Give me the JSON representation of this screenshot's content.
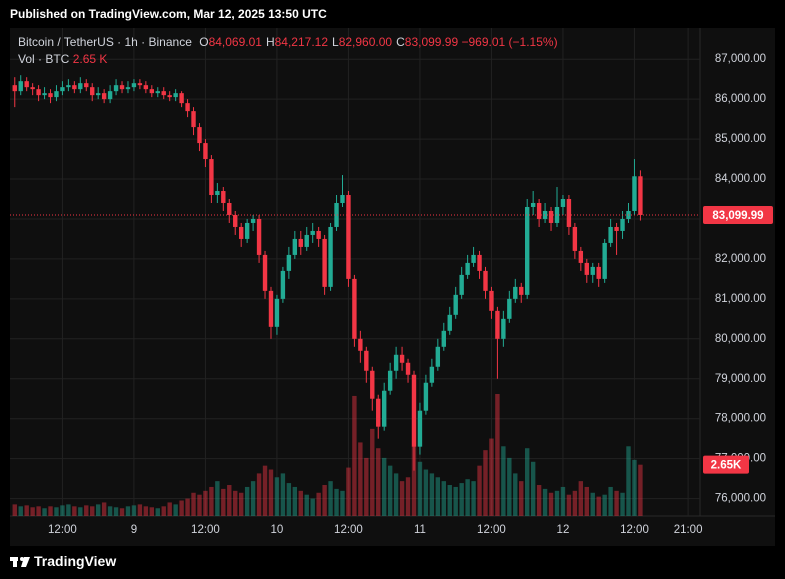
{
  "header": {
    "published": "Published on TradingView.com, Mar 12, 2025 13:50 UTC"
  },
  "chart_data": {
    "type": "candlestick",
    "symbol": "Bitcoin / TetherUS · 1h · Binance",
    "ohlc_keys": [
      "O",
      "H",
      "L",
      "C"
    ],
    "ohlc_labels": [
      "84,069.01",
      "84,217.12",
      "82,960.00",
      "83,099.99"
    ],
    "change_label": "−969.01 (−1.15%)",
    "volume_title": "Vol · BTC",
    "volume_label": "2.65 K",
    "last_price_label": "83,099.99",
    "last_volume_label": "2.65K",
    "open": [
      86350,
      86200,
      86450,
      86300,
      86250,
      86100,
      86150,
      86050,
      86200,
      86300,
      86350,
      86250,
      86400,
      86300,
      86100,
      86150,
      86000,
      86200,
      86350,
      86250,
      86300,
      86400,
      86350,
      86250,
      86150,
      86200,
      86100,
      86050,
      86150,
      85900,
      85700,
      85300,
      84900,
      84500,
      83600,
      83700,
      83400,
      83100,
      82800,
      82500,
      82900,
      83000,
      82100,
      81200,
      80300,
      81000,
      81700,
      82100,
      82500,
      82300,
      82600,
      82700,
      82500,
      81300,
      82800,
      83400,
      83600,
      81500,
      80000,
      79700,
      79200,
      78500,
      77800,
      78700,
      79200,
      79600,
      79400,
      79100,
      77300,
      78200,
      78900,
      79300,
      79800,
      80200,
      80600,
      81100,
      81600,
      81900,
      82100,
      81700,
      81200,
      80700,
      80000,
      80500,
      81000,
      81300,
      81100,
      83300,
      83400,
      83000,
      83200,
      82900,
      83300,
      83500,
      82800,
      82200,
      81900,
      81600,
      81800,
      81500,
      82400,
      82800,
      82700,
      83000,
      83200,
      84069.01
    ],
    "high": [
      86550,
      86600,
      86550,
      86400,
      86350,
      86300,
      86250,
      86350,
      86450,
      86500,
      86450,
      86550,
      86500,
      86400,
      86300,
      86250,
      86350,
      86500,
      86450,
      86450,
      86500,
      86500,
      86450,
      86350,
      86300,
      86300,
      86200,
      86250,
      86200,
      86000,
      85800,
      85400,
      85000,
      84600,
      83900,
      83800,
      83500,
      83200,
      82900,
      83000,
      83100,
      83100,
      82200,
      81300,
      81100,
      81800,
      82300,
      82700,
      82700,
      82800,
      82900,
      82800,
      82600,
      82900,
      83600,
      84100,
      83700,
      81600,
      80200,
      79800,
      79300,
      78600,
      78900,
      79400,
      79800,
      79800,
      79500,
      79200,
      78400,
      79100,
      79500,
      80000,
      80400,
      80800,
      81300,
      81800,
      82100,
      82300,
      82200,
      81800,
      81300,
      80800,
      80700,
      81200,
      81500,
      81400,
      83500,
      83700,
      83500,
      83400,
      83300,
      83800,
      83600,
      83600,
      82900,
      82300,
      82000,
      81900,
      81900,
      82500,
      83000,
      82900,
      83200,
      83400,
      84500,
      84217.12
    ],
    "low": [
      85800,
      86100,
      86200,
      86100,
      85950,
      86000,
      85900,
      85950,
      86100,
      86200,
      86150,
      86150,
      86200,
      85950,
      86000,
      85900,
      85900,
      86100,
      86150,
      86150,
      86200,
      86250,
      86150,
      86050,
      86050,
      86000,
      85950,
      85950,
      85800,
      85550,
      85100,
      84700,
      84300,
      83400,
      83400,
      83200,
      82900,
      82600,
      82300,
      82400,
      82700,
      81900,
      81000,
      80000,
      80100,
      80900,
      81500,
      82000,
      82100,
      82200,
      82400,
      82300,
      81100,
      81200,
      82700,
      83300,
      81300,
      79800,
      79400,
      78900,
      78200,
      77500,
      77700,
      78600,
      79000,
      79200,
      78900,
      76700,
      77100,
      78100,
      78800,
      79200,
      79700,
      80100,
      80500,
      81000,
      81500,
      81800,
      81500,
      81000,
      80500,
      79000,
      79800,
      80400,
      80900,
      80900,
      81000,
      83100,
      82800,
      82900,
      82700,
      82800,
      83100,
      82600,
      82000,
      81700,
      81400,
      81400,
      81300,
      81400,
      82300,
      82100,
      82500,
      82900,
      83100,
      82960
    ],
    "close": [
      86200,
      86450,
      86300,
      86250,
      86100,
      86150,
      86050,
      86200,
      86300,
      86350,
      86250,
      86400,
      86300,
      86100,
      86150,
      86000,
      86200,
      86350,
      86250,
      86300,
      86400,
      86350,
      86250,
      86150,
      86200,
      86100,
      86050,
      86150,
      85900,
      85700,
      85300,
      84900,
      84500,
      83600,
      83700,
      83400,
      83100,
      82800,
      82500,
      82900,
      83000,
      82100,
      81200,
      80300,
      81000,
      81700,
      82100,
      82500,
      82300,
      82600,
      82700,
      82500,
      81300,
      82800,
      83400,
      83600,
      81500,
      80000,
      79700,
      79200,
      78500,
      77800,
      78700,
      79200,
      79600,
      79400,
      79100,
      77300,
      78200,
      78900,
      79300,
      79800,
      80200,
      80600,
      81100,
      81600,
      81900,
      82100,
      81700,
      81200,
      80700,
      80000,
      80500,
      81000,
      81300,
      81100,
      83300,
      83400,
      83000,
      83200,
      82900,
      83300,
      83500,
      82800,
      82200,
      81900,
      81600,
      81800,
      81500,
      82400,
      82800,
      82700,
      83000,
      83200,
      84069.01,
      83099.99
    ],
    "volume": [
      600,
      500,
      550,
      450,
      500,
      400,
      500,
      450,
      550,
      600,
      500,
      450,
      550,
      500,
      600,
      700,
      500,
      450,
      400,
      500,
      550,
      600,
      500,
      450,
      400,
      500,
      700,
      600,
      800,
      900,
      1200,
      1100,
      1300,
      1500,
      1800,
      1400,
      1600,
      1300,
      1200,
      1500,
      1800,
      2200,
      2600,
      2400,
      2000,
      2200,
      1700,
      1500,
      1300,
      1100,
      900,
      1200,
      1600,
      1800,
      1400,
      1300,
      2500,
      6200,
      3800,
      3000,
      4500,
      3500,
      3000,
      2600,
      2200,
      1800,
      2000,
      3600,
      2800,
      2400,
      2200,
      2000,
      1800,
      1600,
      1500,
      1700,
      1900,
      1800,
      2600,
      3400,
      4000,
      6300,
      3600,
      3000,
      2200,
      1800,
      3500,
      2800,
      1600,
      1400,
      1200,
      1300,
      1500,
      1100,
      1300,
      1800,
      1500,
      1200,
      1000,
      1100,
      1500,
      1300,
      1200,
      3600,
      2900,
      2650
    ],
    "up_color": "#22ab94",
    "down_color": "#f23645",
    "xlim": [
      -0.8,
      115
    ],
    "xticks": [
      {
        "value": 8,
        "label": "12:00"
      },
      {
        "value": 20,
        "label": "9"
      },
      {
        "value": 32,
        "label": "12:00"
      },
      {
        "value": 44,
        "label": "10"
      },
      {
        "value": 56,
        "label": "12:00"
      },
      {
        "value": 68,
        "label": "11"
      },
      {
        "value": 80,
        "label": "12:00"
      },
      {
        "value": 92,
        "label": "12"
      },
      {
        "value": 104,
        "label": "12:00"
      },
      {
        "value": 113,
        "label": "21:00"
      }
    ],
    "ylim": [
      75564,
      87781
    ],
    "yticks": [
      {
        "value": 76000,
        "label": "76,000.00"
      },
      {
        "value": 77000,
        "label": "77,000.00"
      },
      {
        "value": 78000,
        "label": "78,000.00"
      },
      {
        "value": 79000,
        "label": "79,000.00"
      },
      {
        "value": 80000,
        "label": "80,000.00"
      },
      {
        "value": 81000,
        "label": "81,000.00"
      },
      {
        "value": 82000,
        "label": "82,000.00"
      },
      {
        "value": 83000,
        "label": "83,000.00"
      },
      {
        "value": 84000,
        "label": "84,000.00"
      },
      {
        "value": 85000,
        "label": "85,000.00"
      },
      {
        "value": 86000,
        "label": "86,000.00"
      },
      {
        "value": 87000,
        "label": "87,000.00"
      }
    ],
    "grid": true
  },
  "footer": {
    "brand": "TradingView"
  }
}
